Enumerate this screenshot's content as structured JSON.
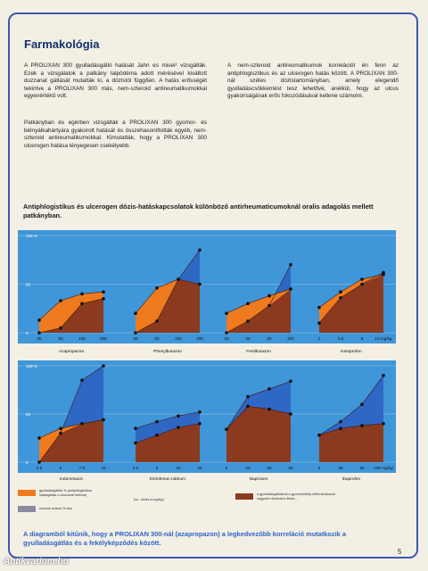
{
  "title": "Farmakológia",
  "col1_p1": "A PROLIXAN 300 gyulladásgátló hatását Jahn es misei² vizsgálták. Ezek a vizsgálatok a patkány talpödéma adott mérésével kiváltott duzzanat gátlását mutatták ki, a dózistól függően. A hatás erősségét tekintve a PROLIXAN 300 más, nem-szteroid antireumatikumokkal egyenértékű volt.",
  "col1_p2": "Patkányban és egérben vizsgálták a PROLIXAN 300 gyomor- és bélnyálkahártyára gyakorolt hatását és összehasonlították egyéb, nem-szteroid antireumatikumokkal. Kimutatták, hogy a PROLIXAN 300 ulcerogen hatása lényegesen csekélyebb.",
  "col2_p1": "A nem-szteroid antireumatikumok korrelációt én fenn az antiphlogisztikus és az ulcerogen hatás között. A PROLIXAN 300-nál széles dózistartományban, amely elegendő gyulladáscsökkentést tesz lehetővé, anélkül, hogy az ulcus gyakoriságának erős fokozódásával kellene számolni.",
  "chart_title": "Antiphlogistikus és ulcerogen dózis-hatáskapcsolatok különböző antirheumaticumoknál oralis adagolás mellett patkányban.",
  "colors": {
    "orange": "#f07a1e",
    "blue": "#2f67c4",
    "brown": "#8b3a1f",
    "panel_bg": "#3f96d8",
    "grid": "#9cc6ea"
  },
  "y_labels": {
    "top": "100 %",
    "mid": "50",
    "bottom": "0"
  },
  "chart_data": [
    {
      "type": "area",
      "drug": "Azapropazon",
      "x_ticks": [
        "25",
        "50",
        "100",
        "200"
      ],
      "antiphlogistic": [
        13,
        33,
        40,
        42
      ],
      "ulcerogen": [
        0,
        5,
        30,
        35
      ],
      "ylim": [
        0,
        100
      ]
    },
    {
      "type": "area",
      "drug": "Phenylbutazon",
      "x_ticks": [
        "25",
        "50",
        "100",
        "200"
      ],
      "antiphlogistic": [
        20,
        46,
        55,
        50
      ],
      "ulcerogen": [
        0,
        12,
        55,
        85
      ],
      "ylim": [
        0,
        100
      ]
    },
    {
      "type": "area",
      "drug": "Fenilbutazon",
      "x_ticks": [
        "10",
        "25",
        "50",
        "100"
      ],
      "antiphlogistic": [
        20,
        30,
        38,
        45
      ],
      "ulcerogen": [
        0,
        12,
        28,
        70
      ],
      "ylim": [
        0,
        100
      ]
    },
    {
      "type": "area",
      "drug": "Ketoprofen",
      "x_ticks": [
        "1",
        "2.5",
        "5",
        "10 mg/kg"
      ],
      "antiphlogistic": [
        26,
        42,
        55,
        60
      ],
      "ulcerogen": [
        10,
        36,
        50,
        62
      ],
      "ylim": [
        0,
        100
      ]
    },
    {
      "type": "area",
      "drug": "Indometacin",
      "x_ticks": [
        "2.5",
        "5",
        "7.5",
        "10"
      ],
      "antiphlogistic": [
        25,
        35,
        40,
        44
      ],
      "ulcerogen": [
        0,
        30,
        85,
        100
      ],
      "ylim": [
        0,
        100
      ]
    },
    {
      "type": "area",
      "drug": "Diclofenac-nátrium",
      "x_ticks": [
        "2.5",
        "5",
        "10",
        "25"
      ],
      "antiphlogistic": [
        20,
        28,
        36,
        40
      ],
      "ulcerogen": [
        35,
        42,
        48,
        52
      ],
      "ylim": [
        0,
        100
      ]
    },
    {
      "type": "area",
      "drug": "Naproxen",
      "x_ticks": [
        "5",
        "10",
        "25",
        "50"
      ],
      "antiphlogistic": [
        34,
        58,
        55,
        50
      ],
      "ulcerogen": [
        34,
        68,
        76,
        84
      ],
      "ylim": [
        0,
        100
      ]
    },
    {
      "type": "area",
      "drug": "Ibuprofen",
      "x_ticks": [
        "5",
        "25",
        "50",
        "100 mg/kg"
      ],
      "antiphlogistic": [
        28,
        35,
        38,
        40
      ],
      "ulcerogen": [
        28,
        42,
        60,
        90
      ],
      "ylim": [
        0,
        100
      ]
    }
  ],
  "legend": {
    "orange_text": "gyulladásgátlás % (antiphlogistikus\nhatásgátlás a duzzanat ödéma)",
    "gray_text": "ulcusok száma %-ban",
    "mid_text": "(sz.: dózis a mg/kg/)",
    "brown_text": "a gyulladásgátlásnál a gyomorfekély előfordulásával\nnagyobb dózisokra illetve..."
  },
  "conclusion": "A diagramból kitűnik, hogy a PROLIXAN 300-nál (azapropazon) a legkedvezőbb korreláció mutatkozik a\ngyulladásgátlás és a fekélyképződés között.",
  "page_number": "5",
  "watermark": "Antikvarium.hu"
}
